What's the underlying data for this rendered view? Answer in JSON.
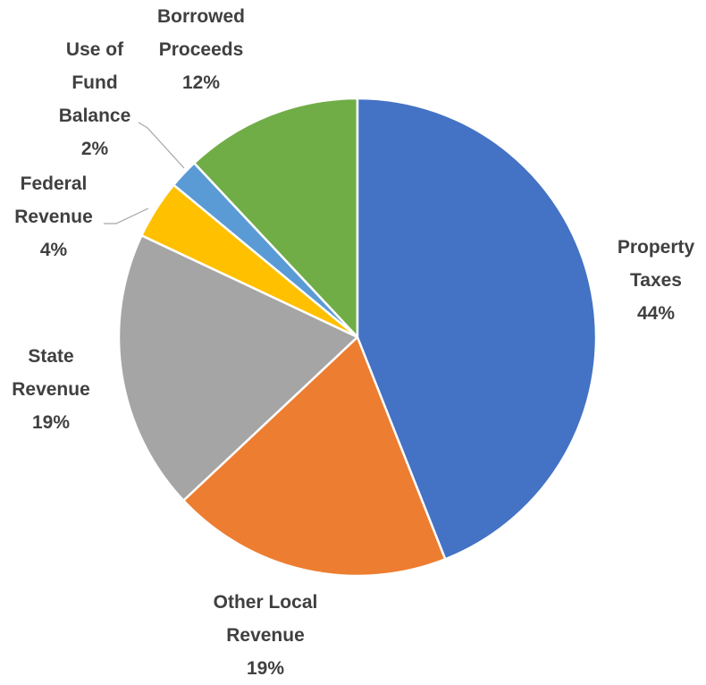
{
  "chart_data": {
    "type": "pie",
    "categories": [
      "Property Taxes",
      "Other Local Revenue",
      "State Revenue",
      "Federal Revenue",
      "Use of Fund Balance",
      "Borrowed Proceeds"
    ],
    "values": [
      44,
      19,
      19,
      4,
      2,
      12
    ],
    "value_labels": [
      "44%",
      "19%",
      "19%",
      "4%",
      "2%",
      "12%"
    ],
    "colors": [
      "#4472c4",
      "#ed7d31",
      "#a5a5a5",
      "#ffc000",
      "#5b9bd5",
      "#70ad47"
    ]
  }
}
